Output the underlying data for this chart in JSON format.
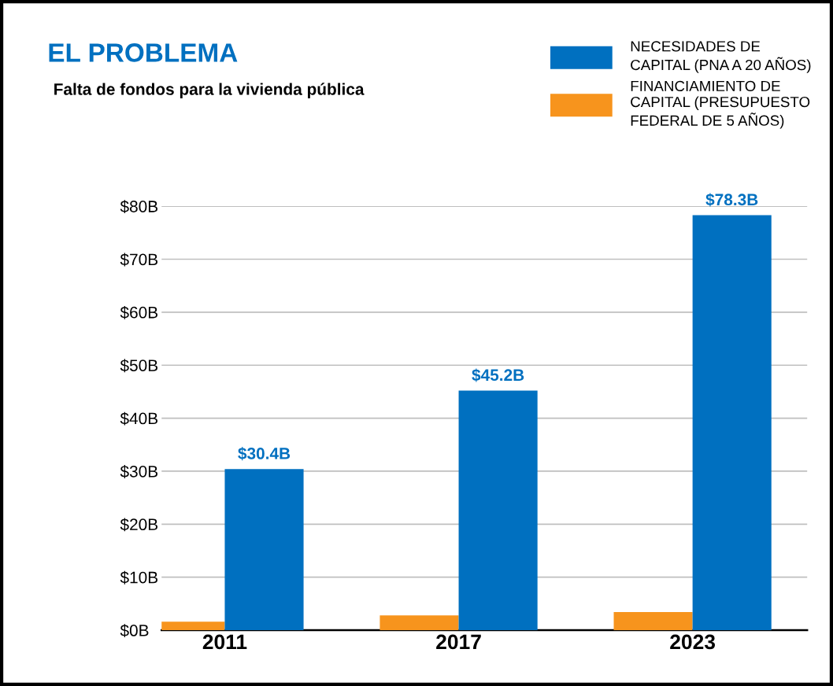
{
  "chart_data": {
    "type": "bar",
    "title": "EL PROBLEMA",
    "subtitle": "Falta de fondos para la vivienda pública",
    "categories": [
      "2011",
      "2017",
      "2023"
    ],
    "series": [
      {
        "name": "FINANCIAMIENTO DE\nCAPITAL (PRESUPUESTO\nFEDERAL DE 5 AÑOS)",
        "color": "#f7941d",
        "values": [
          1.6,
          2.8,
          3.4
        ]
      },
      {
        "name": "NECESIDADES DE\nCAPITAL (PNA A 20 AÑOS)",
        "color": "#0070c0",
        "values": [
          30.4,
          45.2,
          78.3
        ],
        "value_labels": [
          "$30.4B",
          "$45.2B",
          "$78.3B"
        ]
      }
    ],
    "ylim": [
      0,
      80
    ],
    "yticks": [
      {
        "value": 0,
        "label": "$0B"
      },
      {
        "value": 10,
        "label": "$10B"
      },
      {
        "value": 20,
        "label": "$20B"
      },
      {
        "value": 30,
        "label": "$30B"
      },
      {
        "value": 40,
        "label": "$40B"
      },
      {
        "value": 50,
        "label": "$50B"
      },
      {
        "value": 60,
        "label": "$60B"
      },
      {
        "value": 70,
        "label": "$70B"
      },
      {
        "value": 80,
        "label": "$80B"
      }
    ],
    "grid": "y",
    "legend": "top right"
  }
}
